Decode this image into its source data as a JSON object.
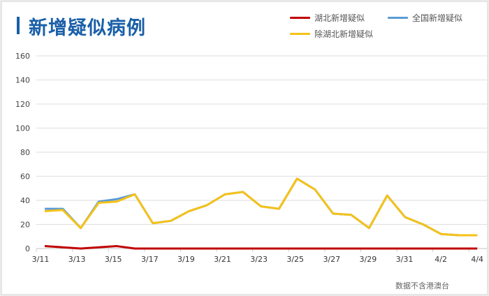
{
  "title": "新增疑似病例",
  "note": "数据不含港澳台",
  "chart_data": {
    "type": "line",
    "title": "新增疑似病例",
    "x": [
      "3/11",
      "3/12",
      "3/13",
      "3/14",
      "3/15",
      "3/16",
      "3/17",
      "3/18",
      "3/19",
      "3/20",
      "3/21",
      "3/22",
      "3/23",
      "3/24",
      "3/25",
      "3/26",
      "3/27",
      "3/28",
      "3/29",
      "3/30",
      "3/31",
      "4/1",
      "4/2",
      "4/3",
      "4/4"
    ],
    "x_tick_labels": [
      "3/11",
      "3/13",
      "3/15",
      "3/17",
      "3/19",
      "3/21",
      "3/23",
      "3/25",
      "3/27",
      "3/29",
      "3/31",
      "4/2",
      "4/4"
    ],
    "y_tick_labels": [
      "0",
      "20",
      "40",
      "60",
      "80",
      "100",
      "120",
      "140",
      "160"
    ],
    "ylim": [
      0,
      160
    ],
    "grid": true,
    "legend_position": "top-right",
    "series": [
      {
        "name": "湖北新增疑似",
        "color": "#c00000",
        "values": [
          2,
          1,
          0,
          1,
          2,
          0,
          0,
          0,
          0,
          0,
          0,
          0,
          0,
          0,
          0,
          0,
          0,
          0,
          0,
          0,
          0,
          0,
          0,
          0,
          0
        ]
      },
      {
        "name": "全国新增疑似",
        "color": "#5b9bd5",
        "values": [
          33,
          33,
          17,
          39,
          41,
          45,
          21,
          23,
          31,
          36,
          45,
          47,
          35,
          33,
          58,
          49,
          29,
          28,
          17,
          44,
          26,
          20,
          12,
          11,
          11
        ]
      },
      {
        "name": "除湖北新增疑似",
        "color": "#f5c218",
        "values": [
          31,
          32,
          17,
          38,
          39,
          45,
          21,
          23,
          31,
          36,
          45,
          47,
          35,
          33,
          58,
          49,
          29,
          28,
          17,
          44,
          26,
          20,
          12,
          11,
          11
        ]
      }
    ]
  }
}
